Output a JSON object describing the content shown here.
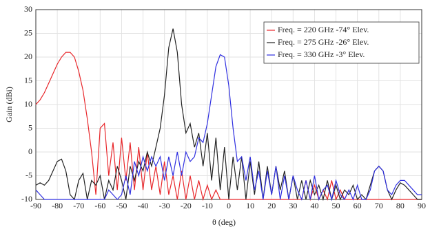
{
  "chart_data": {
    "type": "line",
    "x_label": "θ (deg)",
    "y_label": "Gain (dBi)",
    "x": [
      -90,
      -88,
      -86,
      -84,
      -82,
      -80,
      -78,
      -76,
      -74,
      -72,
      -70,
      -68,
      -66,
      -64,
      -62,
      -60,
      -58,
      -56,
      -54,
      -52,
      -50,
      -48,
      -46,
      -44,
      -42,
      -40,
      -38,
      -36,
      -34,
      -32,
      -30,
      -28,
      -26,
      -24,
      -22,
      -20,
      -18,
      -16,
      -14,
      -12,
      -10,
      -8,
      -6,
      -4,
      -2,
      0,
      2,
      4,
      6,
      8,
      10,
      12,
      14,
      16,
      18,
      20,
      22,
      24,
      26,
      28,
      30,
      32,
      34,
      36,
      38,
      40,
      42,
      44,
      46,
      48,
      50,
      52,
      54,
      56,
      58,
      60,
      62,
      64,
      66,
      68,
      70,
      72,
      74,
      76,
      78,
      80,
      82,
      84,
      86,
      88,
      90
    ],
    "series": [
      {
        "name": "Freq. = 220 GHz -74° Elev.",
        "color": "#e8262a",
        "values": [
          10,
          11,
          12.5,
          14.5,
          16.5,
          18.5,
          20,
          21,
          21,
          20,
          17,
          13,
          7,
          0,
          -9,
          5,
          6,
          -5,
          2,
          -8,
          3,
          -6,
          2,
          -8,
          1,
          -8,
          0,
          -8,
          -3,
          -9,
          -2,
          -9,
          -5,
          -10,
          -4,
          -10,
          -5,
          -10,
          -6,
          -10,
          -7,
          -10,
          -8,
          -10,
          -10,
          -10,
          -10,
          -10,
          -10,
          -10,
          -10,
          -10,
          -10,
          -10,
          -10,
          -10,
          -10,
          -10,
          -10,
          -10,
          -10,
          -10,
          -10,
          -6,
          -10,
          -7,
          -10,
          -8,
          -10,
          -6,
          -10,
          -8,
          -10,
          -10,
          -10,
          -10,
          -10,
          -10,
          -10,
          -10,
          -10,
          -10,
          -10,
          -10,
          -10,
          -10,
          -10,
          -10,
          -10,
          -10,
          -10
        ]
      },
      {
        "name": "Freq. = 275 GHz -26° Elev.",
        "color": "#222222",
        "values": [
          -7,
          -6.5,
          -7,
          -6,
          -4,
          -2,
          -1.5,
          -4,
          -9,
          -10,
          -6,
          -4.5,
          -10,
          -6,
          -7,
          -5,
          -10,
          -6,
          -8,
          -3,
          -6,
          -10,
          -3,
          -6,
          -2,
          -4,
          0,
          -3,
          1,
          5,
          12,
          22,
          26,
          21,
          10,
          4,
          6,
          1,
          4,
          -3,
          4,
          -6,
          3,
          -8,
          1,
          -10,
          -1,
          -8,
          -1,
          -10,
          -2,
          -9,
          -2,
          -10,
          -3,
          -9,
          -3,
          -8,
          -4,
          -10,
          -5,
          -10,
          -6,
          -10,
          -6,
          -9,
          -7,
          -10,
          -6,
          -10,
          -7,
          -10,
          -8,
          -9,
          -7,
          -10,
          -9,
          -10,
          -7,
          -4,
          -3,
          -4,
          -8,
          -10,
          -8,
          -6.5,
          -7,
          -8,
          -9,
          -10,
          -10
        ]
      },
      {
        "name": "Freq. = 330 GHz -3° Elev.",
        "color": "#2f2fe0",
        "values": [
          -8,
          -9,
          -10,
          -10,
          -10,
          -10,
          -10,
          -10,
          -10,
          -10,
          -10,
          -10,
          -10,
          -10,
          -10,
          -10,
          -10,
          -8,
          -9,
          -10,
          -9,
          -5,
          -9,
          -2,
          -5,
          -1,
          -4,
          -1,
          -3,
          -1,
          -6,
          -1,
          -5,
          0,
          -5,
          0,
          -2,
          -1,
          3,
          2,
          6,
          12,
          18,
          20.5,
          20,
          14,
          5,
          -2,
          -1,
          -6,
          -1,
          -8,
          -4,
          -10,
          -4,
          -9,
          -3,
          -10,
          -5,
          -10,
          -5,
          -8,
          -10,
          -6,
          -10,
          -5,
          -10,
          -8,
          -7,
          -10,
          -6,
          -9,
          -10,
          -8,
          -10,
          -7,
          -10,
          -10,
          -8,
          -4,
          -3,
          -4,
          -8,
          -9,
          -7,
          -6,
          -6,
          -7,
          -8,
          -9,
          -9
        ]
      }
    ],
    "xlim": [
      -90,
      90
    ],
    "xticks": [
      -90,
      -80,
      -70,
      -60,
      -50,
      -40,
      -30,
      -20,
      -10,
      0,
      10,
      20,
      30,
      40,
      50,
      60,
      70,
      80,
      90
    ],
    "ylim": [
      -10,
      30
    ],
    "yticks": [
      -10,
      -5,
      0,
      5,
      10,
      15,
      20,
      25,
      30
    ],
    "grid": true,
    "legend": "upper right"
  }
}
